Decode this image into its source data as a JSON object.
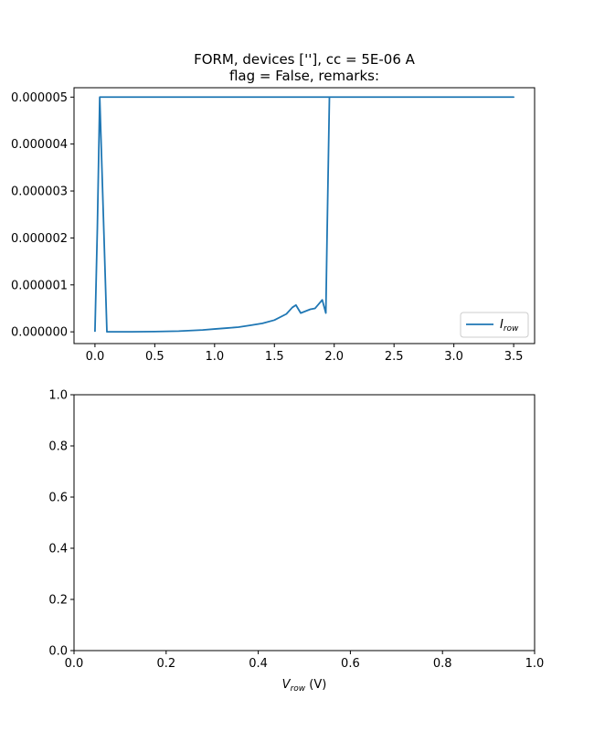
{
  "chart_data": [
    {
      "type": "line",
      "title": [
        "FORM, devices [''], cc = 5E-06 A",
        "flag = False, remarks:"
      ],
      "xlim": [
        -0.175,
        3.675
      ],
      "ylim": [
        -2.5e-06,
        5.2e-06
      ],
      "xticks": [
        0.0,
        0.5,
        1.0,
        1.5,
        2.0,
        2.5,
        3.0,
        3.5
      ],
      "xtick_labels": [
        "0.0",
        "0.5",
        "1.0",
        "1.5",
        "2.0",
        "2.5",
        "3.0",
        "3.5"
      ],
      "yticks": [
        0,
        1e-06,
        2e-06,
        3e-06,
        4e-06,
        5e-06
      ],
      "ytick_labels": [
        "0.000000",
        "0.000001",
        "0.000002",
        "0.000003",
        "0.000004",
        "0.000005"
      ],
      "legend": {
        "position": "lower-right",
        "label_main": "I",
        "label_sub": "row"
      },
      "series": [
        {
          "name": "I_row",
          "color": "#1f77b4",
          "x": [
            0.0,
            0.02,
            0.04,
            0.1,
            0.3,
            0.5,
            0.7,
            0.9,
            1.0,
            1.1,
            1.2,
            1.3,
            1.4,
            1.5,
            1.6,
            1.65,
            1.68,
            1.72,
            1.8,
            1.84,
            1.9,
            1.93,
            1.94,
            1.96,
            2.0,
            2.5,
            3.0,
            3.5,
            3.5,
            3.0,
            2.5,
            2.0,
            1.5,
            1.0,
            0.5,
            0.1,
            0.04
          ],
          "y": [
            0.0,
            2.2e-06,
            5e-06,
            0.0,
            0.0,
            5e-09,
            1.5e-08,
            4e-08,
            6e-08,
            8e-08,
            1e-07,
            1.4e-07,
            1.8e-07,
            2.5e-07,
            3.8e-07,
            5.2e-07,
            5.7e-07,
            4e-07,
            4.8e-07,
            5e-07,
            6.8e-07,
            4e-07,
            2e-06,
            5e-06,
            5e-06,
            5e-06,
            5e-06,
            5e-06,
            5e-06,
            5e-06,
            5e-06,
            5e-06,
            5e-06,
            5e-06,
            5e-06,
            5e-06,
            5e-06
          ]
        }
      ]
    },
    {
      "type": "line",
      "xlim": [
        0.0,
        1.0
      ],
      "ylim": [
        0.0,
        1.0
      ],
      "xticks": [
        0.0,
        0.2,
        0.4,
        0.6,
        0.8,
        1.0
      ],
      "xtick_labels": [
        "0.0",
        "0.2",
        "0.4",
        "0.6",
        "0.8",
        "1.0"
      ],
      "yticks": [
        0.0,
        0.2,
        0.4,
        0.6,
        0.8,
        1.0
      ],
      "ytick_labels": [
        "0.0",
        "0.2",
        "0.4",
        "0.6",
        "0.8",
        "1.0"
      ],
      "xlabel": {
        "main": "V",
        "sub": "row",
        "unit": " (V)"
      },
      "series": []
    }
  ]
}
